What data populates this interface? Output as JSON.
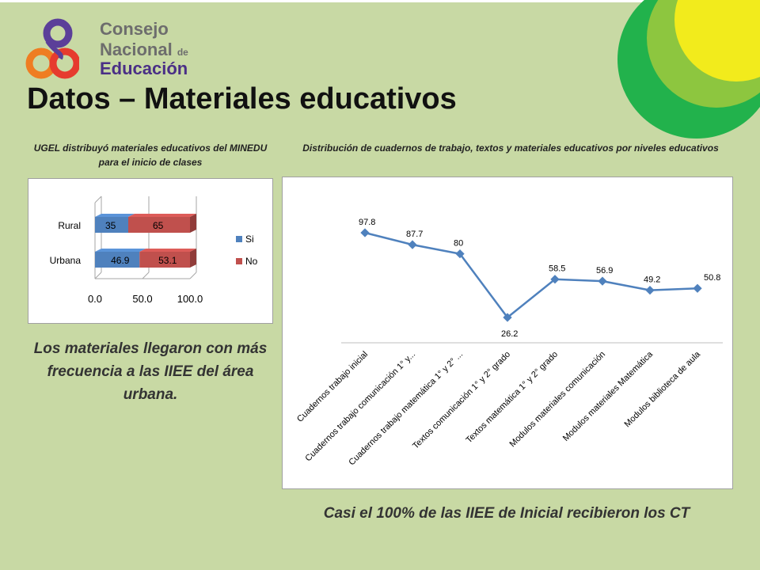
{
  "logo": {
    "line1": "Consejo",
    "line2": "Nacional",
    "line2_suffix": "de",
    "line3": "Educación",
    "colors": {
      "purple": "#5b3f99",
      "orange": "#ef7d22",
      "red": "#e63b2e",
      "text_gray": "#6d6d6d",
      "text_purple": "#4a2f86"
    }
  },
  "slide": {
    "title": "Datos – Materiales educativos",
    "left_caption": "UGEL distribuyó materiales educativos del MINEDU para el inicio de clases",
    "right_caption": "Distribución de cuadernos de trabajo, textos y materiales educativos por niveles educativos",
    "left_note": "Los materiales llegaron con más frecuencia a las IIEE del área urbana.",
    "right_note": "Casi el 100% de las IIEE de Inicial recibieron los CT",
    "colors": {
      "background": "#c8d9a4",
      "deco_green_dark": "#22b24c",
      "deco_green_light": "#8dc63f",
      "deco_yellow": "#f2eb1c"
    }
  },
  "chart_data": [
    {
      "type": "bar",
      "orientation": "horizontal",
      "stacked": true,
      "categories": [
        "Rural",
        "Urbana"
      ],
      "series": [
        {
          "name": "Si",
          "values": [
            35,
            46.9
          ],
          "labels": [
            "35",
            "46.9"
          ],
          "color": "#4f81bd"
        },
        {
          "name": "No",
          "values": [
            65,
            53.1
          ],
          "labels": [
            "65",
            "53.1"
          ],
          "color": "#c0504d"
        }
      ],
      "x_ticks": [
        "0.0",
        "50.0",
        "100.0"
      ],
      "xlim": [
        0,
        100
      ],
      "grid": true,
      "legend": "right"
    },
    {
      "type": "line",
      "categories": [
        "Cuadernos trabajo inicial",
        "Cuadernos trabajo comunicación 1° y...",
        "Cuadernos trabajo matemática 1° y 2° ...",
        "Textos comunicación 1° y 2° grado",
        "Textos matemática 1° y 2° grado",
        "Modulos materiales comunicación",
        "Modulos materiales Matemática",
        "Modulos biblioteca de aula"
      ],
      "values": [
        97.8,
        87.7,
        80,
        26.2,
        58.5,
        56.9,
        49.2,
        50.8
      ],
      "labels": [
        "97.8",
        "87.7",
        "80",
        "26.2",
        "58.5",
        "56.9",
        "49.2",
        "50.8"
      ],
      "color": "#4f81bd",
      "ylim": [
        20,
        105
      ],
      "grid": false
    }
  ]
}
